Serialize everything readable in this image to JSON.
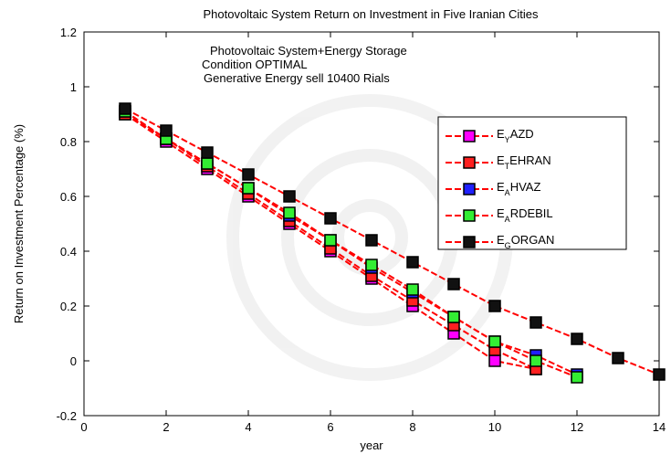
{
  "chart_data": {
    "type": "line",
    "title": "Photovoltaic System Return on Investment in Five Iranian Cities",
    "xlabel": "year",
    "ylabel": "Return on Investment Percentage (%)",
    "xlim": [
      0,
      14
    ],
    "ylim": [
      -0.2,
      1.2
    ],
    "xticks": [
      0,
      2,
      4,
      6,
      8,
      10,
      12,
      14
    ],
    "yticks": [
      -0.2,
      0,
      0.2,
      0.4,
      0.6,
      0.8,
      1,
      1.2
    ],
    "xtick_labels": [
      "0",
      "2",
      "4",
      "6",
      "8",
      "10",
      "12",
      "14"
    ],
    "ytick_labels": [
      "-0.2",
      "0",
      "0.2",
      "0.4",
      "0.6",
      "0.8",
      "1",
      "1.2"
    ],
    "grid": false,
    "legend_position": "right",
    "annotations": [
      "Photovoltaic System+Energy Storage",
      "Condition OPTIMAL",
      "Generative Energy sell 10400 Rials"
    ],
    "line_color": "#ff0000",
    "series": [
      {
        "name": "E_YAZD",
        "legend_main": "E",
        "legend_sub": "Y",
        "legend_rest": "AZD",
        "marker_color": "#ff00ff",
        "x": [
          1,
          2,
          3,
          4,
          5,
          6,
          7,
          8,
          9,
          10,
          11
        ],
        "y": [
          0.9,
          0.8,
          0.7,
          0.6,
          0.5,
          0.4,
          0.3,
          0.2,
          0.1,
          0.0,
          -0.03
        ]
      },
      {
        "name": "E_TEHRAN",
        "legend_main": "E",
        "legend_sub": "T",
        "legend_rest": "EHRAN",
        "marker_color": "#ff2020",
        "x": [
          1,
          2,
          3,
          4,
          5,
          6,
          7,
          8,
          9,
          10,
          11
        ],
        "y": [
          0.9,
          0.81,
          0.71,
          0.61,
          0.51,
          0.41,
          0.31,
          0.22,
          0.13,
          0.04,
          -0.03
        ]
      },
      {
        "name": "E_AHVAZ",
        "legend_main": "E",
        "legend_sub": "A",
        "legend_rest": "HVAZ",
        "marker_color": "#2020ff",
        "x": [
          1,
          2,
          3,
          4,
          5,
          6,
          7,
          8,
          9,
          10,
          11,
          12
        ],
        "y": [
          0.91,
          0.81,
          0.72,
          0.63,
          0.53,
          0.44,
          0.34,
          0.25,
          0.16,
          0.07,
          0.02,
          -0.05
        ]
      },
      {
        "name": "E_ARDEBIL",
        "legend_main": "E",
        "legend_sub": "A",
        "legend_rest": "RDEBIL",
        "marker_color": "#33ee33",
        "x": [
          1,
          2,
          3,
          4,
          5,
          6,
          7,
          8,
          9,
          10,
          11,
          12
        ],
        "y": [
          0.91,
          0.81,
          0.72,
          0.63,
          0.54,
          0.44,
          0.35,
          0.26,
          0.16,
          0.07,
          0.0,
          -0.06
        ]
      },
      {
        "name": "E_GORGAN",
        "legend_main": "E",
        "legend_sub": "G",
        "legend_rest": "ORGAN",
        "marker_color": "#111111",
        "x": [
          1,
          2,
          3,
          4,
          5,
          6,
          7,
          8,
          9,
          10,
          11,
          12,
          13,
          14
        ],
        "y": [
          0.92,
          0.84,
          0.76,
          0.68,
          0.6,
          0.52,
          0.44,
          0.36,
          0.28,
          0.2,
          0.14,
          0.08,
          0.01,
          -0.05
        ]
      }
    ]
  }
}
